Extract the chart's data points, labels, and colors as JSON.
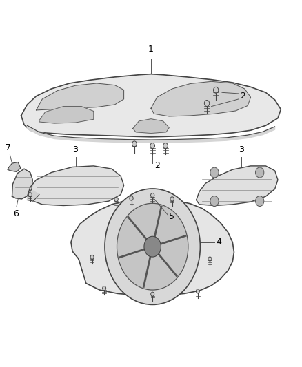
{
  "background_color": "#ffffff",
  "fig_width": 4.38,
  "fig_height": 5.33,
  "dpi": 100,
  "line_color": "#555555",
  "text_color": "#000000",
  "part_fontsize": 9,
  "cover_fill": "#e8e8e8",
  "cover_stroke": "#444444",
  "manifold_fill": "#e0e0e0",
  "circular_fill": "#e5e5e5",
  "bracket_fill": "#d8d8d8",
  "spoke_color": "#555555",
  "detail_color": "#666666"
}
